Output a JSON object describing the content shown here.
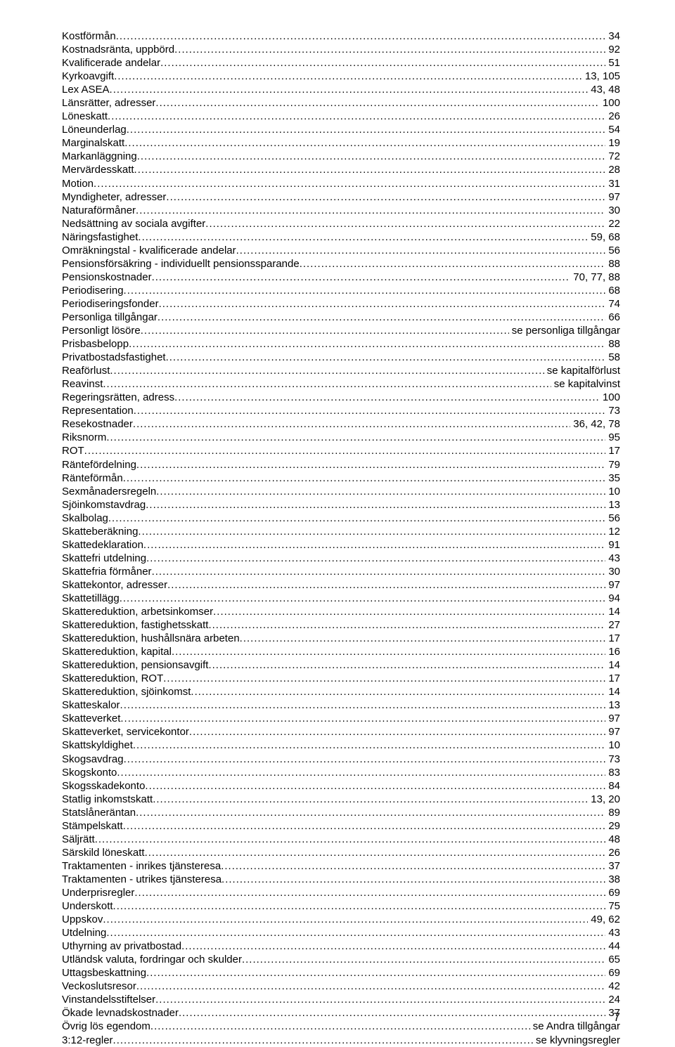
{
  "index": {
    "entries": [
      {
        "term": "Kostförmån",
        "page": "34"
      },
      {
        "term": "Kostnadsränta, uppbörd",
        "page": "92"
      },
      {
        "term": "Kvalificerade andelar",
        "page": "51"
      },
      {
        "term": "Kyrkoavgift",
        "page": "13, 105"
      },
      {
        "term": "Lex ASEA",
        "page": "43, 48"
      },
      {
        "term": "Länsrätter, adresser",
        "page": "100"
      },
      {
        "term": "Löneskatt",
        "page": "26"
      },
      {
        "term": "Löneunderlag",
        "page": "54"
      },
      {
        "term": "Marginalskatt",
        "page": "19"
      },
      {
        "term": "Markanläggning",
        "page": "72"
      },
      {
        "term": "Mervärdesskatt",
        "page": "28"
      },
      {
        "term": "Motion",
        "page": "31"
      },
      {
        "term": "Myndigheter, adresser",
        "page": "97"
      },
      {
        "term": "Naturaförmåner",
        "page": "30"
      },
      {
        "term": "Nedsättning av sociala avgifter",
        "page": "22"
      },
      {
        "term": "Näringsfastighet",
        "page": "59, 68"
      },
      {
        "term": "Omräkningstal - kvalificerade andelar",
        "page": "56"
      },
      {
        "term": "Pensionsförsäkring - individuellt pensionssparande",
        "page": "88"
      },
      {
        "term": "Pensionskostnader",
        "page": "70, 77, 88"
      },
      {
        "term": "Periodisering",
        "page": "68"
      },
      {
        "term": "Periodiseringsfonder",
        "page": "74"
      },
      {
        "term": "Personliga tillgångar",
        "page": "66"
      },
      {
        "term": "Personligt lösöre",
        "page": "se personliga tillgångar"
      },
      {
        "term": "Prisbasbelopp",
        "page": "88"
      },
      {
        "term": "Privatbostadsfastighet",
        "page": "58"
      },
      {
        "term": "Reaförlust",
        "page": "se kapitalförlust"
      },
      {
        "term": "Reavinst",
        "page": "se kapitalvinst"
      },
      {
        "term": "Regeringsrätten, adress",
        "page": "100"
      },
      {
        "term": "Representation",
        "page": "73"
      },
      {
        "term": "Resekostnader",
        "page": "36, 42, 78"
      },
      {
        "term": "Riksnorm",
        "page": "95"
      },
      {
        "term": "ROT",
        "page": "17"
      },
      {
        "term": "Räntefördelning",
        "page": "79"
      },
      {
        "term": "Ränteförmån",
        "page": "35"
      },
      {
        "term": "Sexmånadersregeln",
        "page": "10"
      },
      {
        "term": "Sjöinkomstavdrag",
        "page": "13"
      },
      {
        "term": "Skalbolag",
        "page": "56"
      },
      {
        "term": "Skatteberäkning",
        "page": "12"
      },
      {
        "term": "Skattedeklaration",
        "page": "91"
      },
      {
        "term": "Skattefri utdelning",
        "page": "43"
      },
      {
        "term": "Skattefria förmåner",
        "page": "30"
      },
      {
        "term": "Skattekontor, adresser",
        "page": "97"
      },
      {
        "term": "Skattetillägg",
        "page": "94"
      },
      {
        "term": "Skattereduktion, arbetsinkomser",
        "page": "14"
      },
      {
        "term": "Skattereduktion, fastighetsskatt",
        "page": "27"
      },
      {
        "term": "Skattereduktion, hushållsnära arbeten",
        "page": "17"
      },
      {
        "term": "Skattereduktion, kapital",
        "page": "16"
      },
      {
        "term": "Skattereduktion, pensionsavgift",
        "page": "14"
      },
      {
        "term": "Skattereduktion, ROT",
        "page": "17"
      },
      {
        "term": "Skattereduktion, sjöinkomst",
        "page": "14"
      },
      {
        "term": "Skatteskalor",
        "page": "13"
      },
      {
        "term": "Skatteverket",
        "page": "97"
      },
      {
        "term": "Skatteverket, servicekontor",
        "page": "97"
      },
      {
        "term": "Skattskyldighet",
        "page": "10"
      },
      {
        "term": "Skogsavdrag",
        "page": "73"
      },
      {
        "term": "Skogskonto",
        "page": "83"
      },
      {
        "term": "Skogsskadekonto",
        "page": "84"
      },
      {
        "term": "Statlig inkomstskatt",
        "page": "13, 20"
      },
      {
        "term": "Statslåneräntan",
        "page": "89"
      },
      {
        "term": "Stämpelskatt",
        "page": "29"
      },
      {
        "term": "Säljrätt",
        "page": "48"
      },
      {
        "term": "Särskild löneskatt",
        "page": "26"
      },
      {
        "term": "Traktamenten - inrikes tjänsteresa",
        "page": "37"
      },
      {
        "term": "Traktamenten - utrikes tjänsteresa",
        "page": "38"
      },
      {
        "term": "Underprisregler",
        "page": "69"
      },
      {
        "term": "Underskott",
        "page": "75"
      },
      {
        "term": "Uppskov",
        "page": "49, 62"
      },
      {
        "term": "Utdelning",
        "page": "43"
      },
      {
        "term": "Uthyrning av privatbostad",
        "page": "44"
      },
      {
        "term": "Utländsk valuta, fordringar och skulder",
        "page": "65"
      },
      {
        "term": "Uttagsbeskattning",
        "page": "69"
      },
      {
        "term": "Veckoslutsresor",
        "page": "42"
      },
      {
        "term": "Vinstandelsstiftelser",
        "page": "24"
      },
      {
        "term": "Ökade levnadskostnader",
        "page": "37"
      },
      {
        "term": "Övrig lös egendom",
        "page": "se Andra tillgångar"
      },
      {
        "term": "3:12-regler",
        "page": "se klyvningsregler"
      }
    ]
  },
  "page_number": "7"
}
